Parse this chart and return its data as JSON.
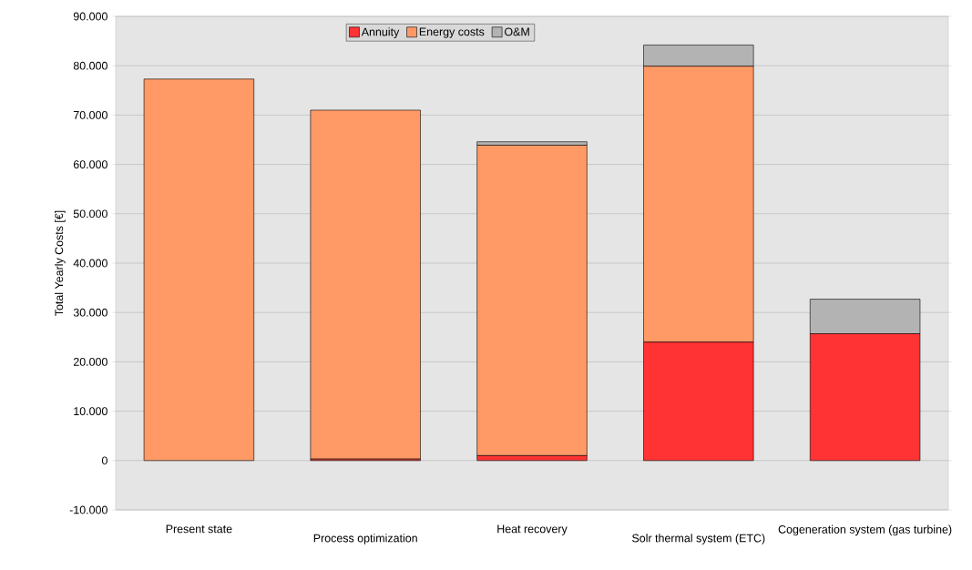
{
  "chart_data": {
    "type": "bar",
    "stacked": true,
    "ylabel": "Total Yearly Costs [€]",
    "categories": [
      "Present state",
      "Process optimization",
      "Heat recovery",
      "Solr thermal system (ETC)",
      "Cogeneration system (gas turbine)"
    ],
    "series": [
      {
        "name": "Annuity",
        "color": "#ff3333",
        "values": [
          0,
          300,
          1000,
          24000,
          25700
        ]
      },
      {
        "name": "Energy costs",
        "color": "#ff9966",
        "values": [
          77300,
          70700,
          62900,
          55900,
          0
        ]
      },
      {
        "name": "O&M",
        "color": "#b3b3b3",
        "values": [
          0,
          0,
          700,
          4300,
          7000
        ]
      }
    ],
    "ylim": [
      -10000,
      90000
    ],
    "yticks": [
      {
        "value": -10000,
        "label": "-10.000"
      },
      0,
      {
        "value": 10000,
        "label": "10.000"
      },
      {
        "value": 20000,
        "label": "20.000"
      },
      {
        "value": 30000,
        "label": "30.000"
      },
      {
        "value": 40000,
        "label": "40.000"
      },
      {
        "value": 50000,
        "label": "50.000"
      },
      {
        "value": 60000,
        "label": "60.000"
      },
      {
        "value": 70000,
        "label": "70.000"
      },
      {
        "value": 80000,
        "label": "80.000"
      },
      {
        "value": 90000,
        "label": "90.000"
      }
    ],
    "grid": "y",
    "legend": "top"
  }
}
